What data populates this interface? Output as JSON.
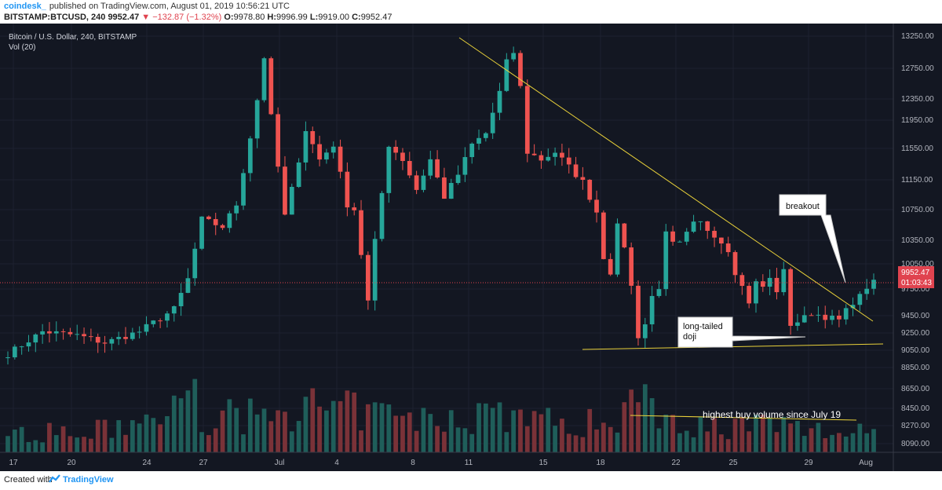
{
  "header": {
    "author": "coindesk_",
    "published_text": "published on TradingView.com, August 01, 2019 10:56:21 UTC",
    "symbol": "BITSTAMP:BTCUSD, 240",
    "price": "9952.47",
    "change": "−132.87 (−1.32%)",
    "open_label": "O:",
    "open": "9978.80",
    "high_label": "H:",
    "high": "9996.99",
    "low_label": "L:",
    "low": "9919.00",
    "close_label": "C:",
    "close": "9952.47"
  },
  "legend": {
    "title": "Bitcoin / U.S. Dollar, 240, BITSTAMP",
    "volume": "Vol (20)"
  },
  "price_tag": {
    "price": "9952.47",
    "countdown": "01:03:43"
  },
  "footer": {
    "created_with": "Created with",
    "brand": "TradingView"
  },
  "colors": {
    "up": "#26a69a",
    "down": "#ef5350",
    "background": "#131722",
    "trendline": "#e9d13a",
    "price_tag": "#e0434f"
  },
  "chart_data": {
    "type": "candlestick",
    "x_tick_labels": [
      "17",
      "20",
      "24",
      "27",
      "Jul",
      "4",
      "8",
      "11",
      "15",
      "18",
      "22",
      "25",
      "29",
      "Aug"
    ],
    "y_tick_labels": [
      "13250.00",
      "12750.00",
      "12350.00",
      "11950.00",
      "11550.00",
      "11150.00",
      "10750.00",
      "10350.00",
      "10050.00",
      "9750.00",
      "9450.00",
      "9250.00",
      "9050.00",
      "8850.00",
      "8650.00",
      "8450.00",
      "8270.00",
      "8090.00"
    ],
    "price_path": [
      [
        0,
        9000
      ],
      [
        5,
        9300
      ],
      [
        10,
        9250
      ],
      [
        14,
        9150
      ],
      [
        19,
        9300
      ],
      [
        24,
        9600
      ],
      [
        26,
        10000
      ],
      [
        28,
        10800
      ],
      [
        31,
        10700
      ],
      [
        33,
        11000
      ],
      [
        35,
        11900
      ],
      [
        36,
        12400
      ],
      [
        36.6,
        13350
      ],
      [
        37.5,
        12500
      ],
      [
        39,
        11500
      ],
      [
        39.6,
        10700
      ],
      [
        41,
        11200
      ],
      [
        43,
        12000
      ],
      [
        45,
        11600
      ],
      [
        47,
        11800
      ],
      [
        49,
        11000
      ],
      [
        50.5,
        10900
      ],
      [
        51.3,
        10000
      ],
      [
        52,
        9700
      ],
      [
        53,
        10500
      ],
      [
        55,
        11800
      ],
      [
        57,
        11600
      ],
      [
        59,
        11200
      ],
      [
        61,
        11600
      ],
      [
        63,
        11100
      ],
      [
        65,
        11400
      ],
      [
        67,
        11800
      ],
      [
        69,
        11950
      ],
      [
        71,
        12500
      ],
      [
        72,
        12900
      ],
      [
        73.5,
        13100
      ],
      [
        74.2,
        12350
      ],
      [
        75,
        11700
      ],
      [
        77,
        11600
      ],
      [
        79,
        11700
      ],
      [
        81,
        11500
      ],
      [
        83,
        11300
      ],
      [
        85,
        10900
      ],
      [
        86,
        10300
      ],
      [
        87,
        10100
      ],
      [
        88,
        10700
      ],
      [
        89,
        10450
      ],
      [
        90,
        9900
      ],
      [
        90.8,
        9300
      ],
      [
        91.5,
        9100
      ],
      [
        92.5,
        9700
      ],
      [
        94,
        9900
      ],
      [
        95,
        10600
      ],
      [
        96.5,
        10400
      ],
      [
        98,
        10600
      ],
      [
        99.5,
        10800
      ],
      [
        100.5,
        10700
      ],
      [
        102,
        10600
      ],
      [
        104,
        10400
      ],
      [
        105,
        10100
      ],
      [
        106,
        9900
      ],
      [
        107,
        9700
      ],
      [
        108,
        9950
      ],
      [
        109,
        9900
      ],
      [
        110,
        10000
      ],
      [
        111,
        9850
      ],
      [
        112,
        10100
      ],
      [
        112.6,
        9600
      ],
      [
        113,
        9400
      ],
      [
        114.5,
        9450
      ],
      [
        116,
        9550
      ],
      [
        118,
        9500
      ],
      [
        120,
        9450
      ],
      [
        122,
        9700
      ],
      [
        123.5,
        9800
      ],
      [
        124.5,
        10000
      ],
      [
        125,
        9950
      ]
    ],
    "volume_profile": [
      [
        0,
        160
      ],
      [
        10,
        130
      ],
      [
        20,
        220
      ],
      [
        27,
        380
      ],
      [
        28,
        270
      ],
      [
        34,
        250
      ],
      [
        40,
        330
      ],
      [
        52,
        290
      ],
      [
        60,
        230
      ],
      [
        70,
        300
      ],
      [
        74,
        280
      ],
      [
        80,
        200
      ],
      [
        87,
        230
      ],
      [
        91,
        420
      ],
      [
        93,
        360
      ],
      [
        95,
        300
      ],
      [
        100,
        190
      ],
      [
        110,
        200
      ],
      [
        120,
        140
      ],
      [
        123,
        200
      ],
      [
        125,
        150
      ]
    ],
    "candle_count": 126,
    "current_price": 9952.47,
    "trendlines": [
      {
        "from": [
          "Jul 10",
          13200
        ],
        "to": [
          "Aug 1",
          9400
        ]
      },
      {
        "from": [
          "Jul 17",
          9020
        ],
        "to": [
          "Aug 2",
          9110
        ]
      },
      {
        "from": [
          "Jul 19",
          8390
        ],
        "to": [
          "Aug 1",
          8350
        ]
      }
    ],
    "annotations": [
      "breakout",
      "long-tailed doji",
      "highest buy volume since July 19"
    ]
  }
}
